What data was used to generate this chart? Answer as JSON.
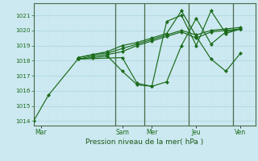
{
  "title": "",
  "xlabel": "Pression niveau de la mer( hPa )",
  "bg_color": "#cce8f0",
  "grid_major_color": "#b0d8e0",
  "grid_minor_color": "#c8e4ec",
  "line_color": "#1a6b1a",
  "marker_color": "#1a6b1a",
  "ylim": [
    1013.7,
    1021.8
  ],
  "yticks": [
    1014,
    1015,
    1016,
    1017,
    1018,
    1019,
    1020,
    1021
  ],
  "vline_color": "#4a6a4a",
  "spine_color": "#4a6a4a",
  "xlabel_color": "#1a5a1a",
  "tick_color": "#1a6b1a",
  "lines": [
    {
      "x": [
        0,
        1,
        3,
        6,
        7,
        8,
        9,
        10,
        11,
        12,
        13,
        14
      ],
      "y": [
        1014.0,
        1015.7,
        1018.1,
        1018.2,
        1016.5,
        1016.3,
        1016.6,
        1019.0,
        1020.8,
        1019.1,
        1019.9,
        1020.1
      ]
    },
    {
      "x": [
        3,
        4,
        5,
        6,
        7,
        8,
        9,
        10,
        11,
        12,
        13,
        14
      ],
      "y": [
        1018.1,
        1018.2,
        1018.3,
        1017.3,
        1016.4,
        1016.3,
        1020.6,
        1021.0,
        1019.0,
        1021.3,
        1019.8,
        1020.1
      ]
    },
    {
      "x": [
        3,
        4,
        5,
        6,
        7,
        8,
        9,
        10,
        11,
        12,
        13,
        14
      ],
      "y": [
        1018.1,
        1018.3,
        1018.4,
        1018.6,
        1019.0,
        1019.3,
        1019.6,
        1019.9,
        1019.5,
        1019.9,
        1020.0,
        1020.1
      ]
    },
    {
      "x": [
        3,
        4,
        5,
        6,
        7,
        8,
        9,
        10,
        11,
        12,
        13,
        14
      ],
      "y": [
        1018.2,
        1018.4,
        1018.5,
        1018.8,
        1019.1,
        1019.4,
        1019.7,
        1020.0,
        1019.7,
        1020.0,
        1020.1,
        1020.2
      ]
    },
    {
      "x": [
        3,
        4,
        5,
        6,
        7,
        8,
        9,
        10,
        11,
        12,
        13,
        14
      ],
      "y": [
        1018.2,
        1018.4,
        1018.6,
        1019.0,
        1019.2,
        1019.5,
        1019.8,
        1021.3,
        1019.6,
        1018.1,
        1017.3,
        1018.5
      ]
    }
  ],
  "xlim": [
    0,
    15
  ],
  "x_day_labels": [
    "Mar",
    "Sam",
    "Mer",
    "Jeu",
    "Ven"
  ],
  "x_day_positions": [
    0.5,
    6,
    8,
    11,
    14
  ],
  "vline_positions": [
    5.5,
    7.5,
    10.5,
    13.5
  ]
}
